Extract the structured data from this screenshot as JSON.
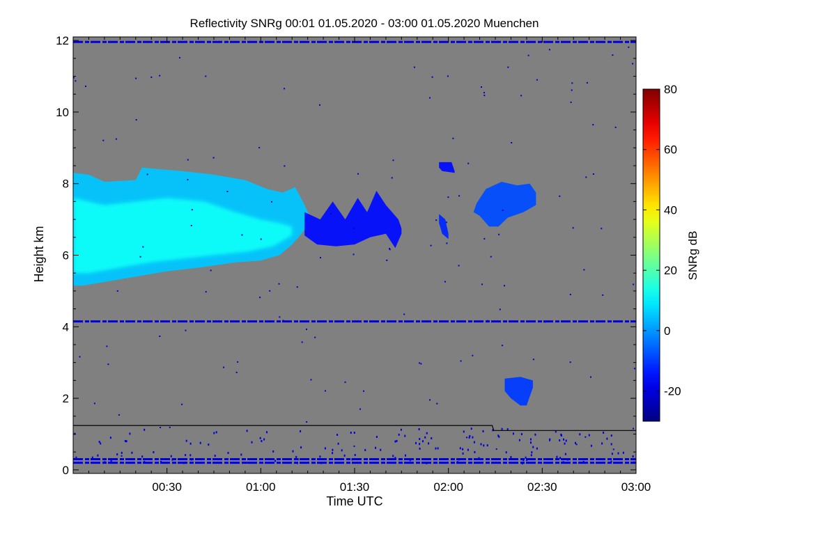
{
  "chart_data": {
    "type": "heatmap",
    "title": "Reflectivity SNRg   00:01 01.05.2020 - 03:00 01.05.2020 Muenchen",
    "xlabel": "Time UTC",
    "ylabel": "Height km",
    "x_unit": "minutes_utc",
    "xlim": [
      0,
      180
    ],
    "ylim": [
      -0.1,
      12.1
    ],
    "x_ticks": [
      {
        "value": 30,
        "label": "00:30"
      },
      {
        "value": 60,
        "label": "01:00"
      },
      {
        "value": 90,
        "label": "01:30"
      },
      {
        "value": 120,
        "label": "02:00"
      },
      {
        "value": 150,
        "label": "02:30"
      },
      {
        "value": 180,
        "label": "03:00"
      }
    ],
    "y_ticks": [
      {
        "value": 0,
        "label": "0"
      },
      {
        "value": 2,
        "label": "2"
      },
      {
        "value": 4,
        "label": "4"
      },
      {
        "value": 6,
        "label": "6"
      },
      {
        "value": 8,
        "label": "8"
      },
      {
        "value": 10,
        "label": "10"
      },
      {
        "value": 12,
        "label": "12"
      }
    ],
    "background_color": "#808080",
    "colorbar": {
      "label": "SNRg dB",
      "range": [
        -30,
        80
      ],
      "ticks": [
        {
          "value": -20,
          "label": "-20"
        },
        {
          "value": 0,
          "label": "0"
        },
        {
          "value": 20,
          "label": "20"
        },
        {
          "value": 40,
          "label": "40"
        },
        {
          "value": 60,
          "label": "60"
        },
        {
          "value": 80,
          "label": "80"
        }
      ],
      "colormap": "jet"
    },
    "cloud_layers": [
      {
        "name": "ice-cloud-main",
        "snr_db": 5,
        "upper": [
          [
            0,
            8.3
          ],
          [
            5,
            8.25
          ],
          [
            10,
            8.05
          ],
          [
            20,
            8.1
          ],
          [
            22,
            8.45
          ],
          [
            28,
            8.4
          ],
          [
            35,
            8.35
          ],
          [
            45,
            8.25
          ],
          [
            55,
            8.1
          ],
          [
            62,
            7.85
          ],
          [
            67,
            7.75
          ],
          [
            71,
            7.9
          ],
          [
            74,
            7.4
          ],
          [
            76,
            7.0
          ]
        ],
        "lower": [
          [
            76,
            6.95
          ],
          [
            73,
            6.6
          ],
          [
            70,
            6.3
          ],
          [
            66,
            6.0
          ],
          [
            60,
            5.85
          ],
          [
            52,
            5.8
          ],
          [
            40,
            5.65
          ],
          [
            30,
            5.55
          ],
          [
            20,
            5.4
          ],
          [
            10,
            5.25
          ],
          [
            3,
            5.15
          ],
          [
            0,
            5.15
          ]
        ]
      },
      {
        "name": "ice-cloud-core",
        "snr_db": 12,
        "upper": [
          [
            0,
            7.6
          ],
          [
            10,
            7.4
          ],
          [
            20,
            7.5
          ],
          [
            30,
            7.6
          ],
          [
            42,
            7.5
          ],
          [
            52,
            7.2
          ],
          [
            60,
            7.0
          ],
          [
            66,
            6.9
          ],
          [
            70,
            6.8
          ]
        ],
        "lower": [
          [
            70,
            6.55
          ],
          [
            64,
            6.25
          ],
          [
            56,
            6.1
          ],
          [
            45,
            6.0
          ],
          [
            35,
            5.9
          ],
          [
            25,
            5.8
          ],
          [
            15,
            5.65
          ],
          [
            5,
            5.5
          ],
          [
            0,
            5.5
          ]
        ]
      },
      {
        "name": "cloud-tail",
        "snr_db": -15,
        "upper": [
          [
            74,
            7.2
          ],
          [
            79,
            7.0
          ],
          [
            83,
            7.5
          ],
          [
            87,
            7.0
          ],
          [
            91,
            7.6
          ],
          [
            94,
            7.2
          ],
          [
            97,
            7.8
          ],
          [
            100,
            7.4
          ],
          [
            104,
            7.0
          ],
          [
            105,
            6.75
          ]
        ],
        "lower": [
          [
            105,
            6.6
          ],
          [
            103,
            6.2
          ],
          [
            100,
            6.6
          ],
          [
            95,
            6.5
          ],
          [
            90,
            6.3
          ],
          [
            84,
            6.25
          ],
          [
            78,
            6.3
          ],
          [
            74,
            6.55
          ]
        ]
      },
      {
        "name": "small-patch",
        "snr_db": -12,
        "upper": [
          [
            117,
            7.15
          ],
          [
            119,
            7.0
          ],
          [
            120,
            6.6
          ]
        ],
        "lower": [
          [
            120,
            6.45
          ],
          [
            118,
            6.6
          ],
          [
            117,
            6.9
          ]
        ]
      },
      {
        "name": "cloud-right",
        "snr_db": -8,
        "upper": [
          [
            129,
            7.45
          ],
          [
            132,
            7.85
          ],
          [
            137,
            8.05
          ],
          [
            142,
            7.95
          ],
          [
            146,
            8.0
          ],
          [
            148,
            7.75
          ]
        ],
        "lower": [
          [
            148,
            7.4
          ],
          [
            144,
            7.2
          ],
          [
            139,
            7.05
          ],
          [
            136,
            6.8
          ],
          [
            133,
            6.8
          ],
          [
            130,
            7.1
          ],
          [
            128,
            7.2
          ]
        ]
      },
      {
        "name": "low-precip",
        "snr_db": -10,
        "upper": [
          [
            138,
            2.55
          ],
          [
            143,
            2.6
          ],
          [
            147,
            2.5
          ]
        ],
        "lower": [
          [
            147,
            2.3
          ],
          [
            145,
            1.8
          ],
          [
            143,
            1.8
          ],
          [
            140,
            2.0
          ],
          [
            138,
            2.2
          ]
        ]
      },
      {
        "name": "cirrus-bits",
        "snr_db": -15,
        "upper": [
          [
            117,
            8.6
          ],
          [
            121,
            8.6
          ],
          [
            122,
            8.35
          ]
        ],
        "lower": [
          [
            122,
            8.3
          ],
          [
            118,
            8.35
          ],
          [
            117,
            8.45
          ]
        ]
      }
    ],
    "horizontal_bands": [
      {
        "name": "top-band",
        "y": 11.96,
        "snr_db": -20
      },
      {
        "name": "artifact-4km",
        "y": 4.15,
        "snr_db": -20
      },
      {
        "name": "ground-clutter-1",
        "y": 0.3,
        "snr_db": -20
      },
      {
        "name": "ground-clutter-2",
        "y": 0.2,
        "snr_db": -18
      }
    ],
    "boundary_line": {
      "name": "cloud-base-line",
      "color": "#000000",
      "points": [
        [
          0,
          1.24
        ],
        [
          134,
          1.24
        ],
        [
          134.5,
          1.1
        ],
        [
          180,
          1.1
        ]
      ]
    }
  }
}
